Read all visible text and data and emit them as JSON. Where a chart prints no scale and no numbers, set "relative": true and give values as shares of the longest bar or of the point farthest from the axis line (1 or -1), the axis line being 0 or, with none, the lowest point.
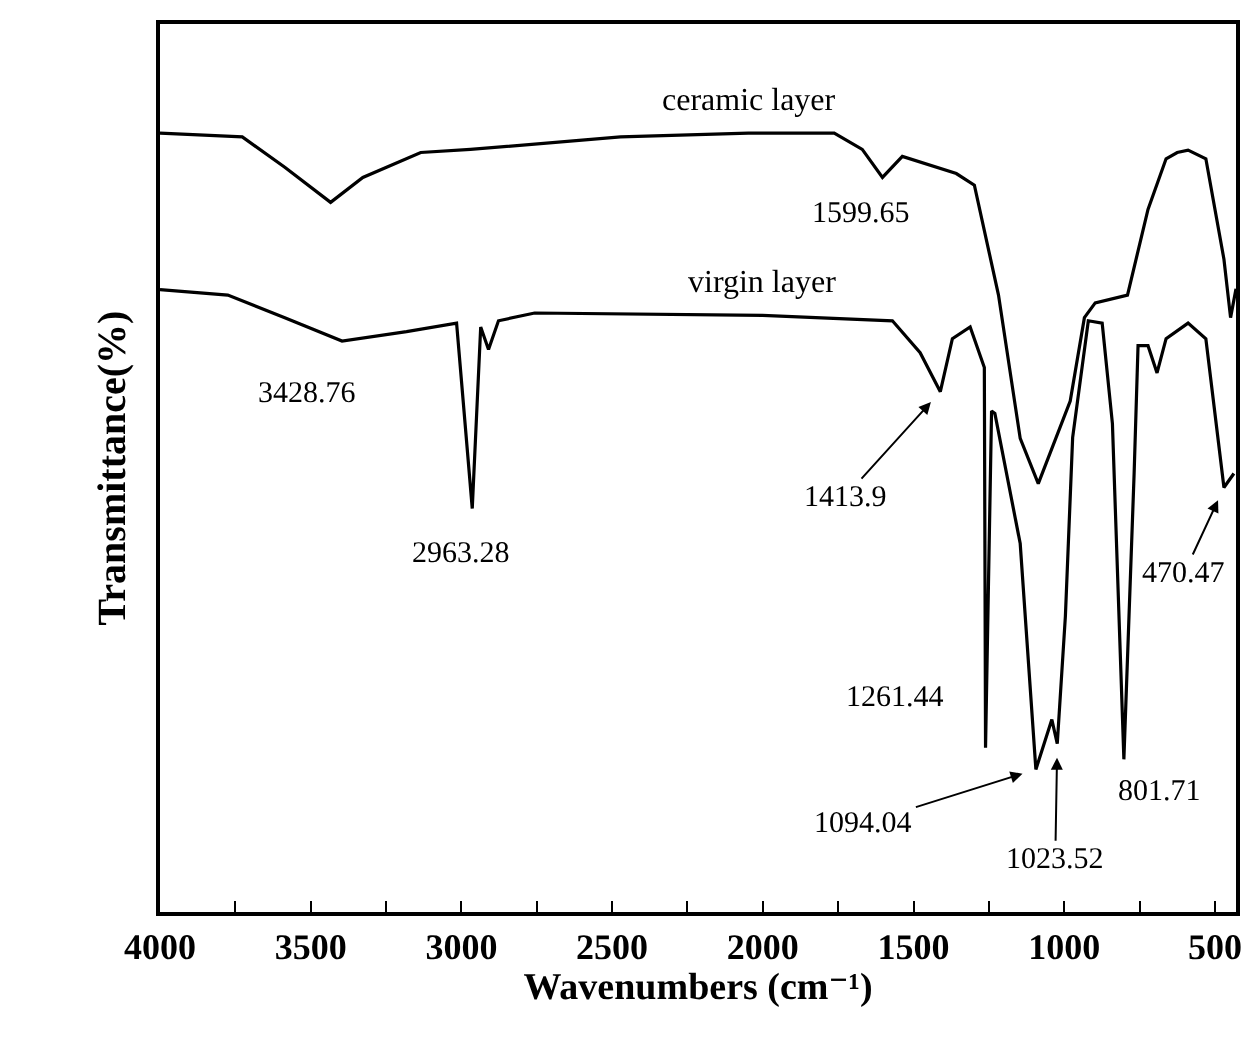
{
  "chart_data": {
    "type": "line",
    "relative": true,
    "xlabel": "Wavenumbers (cm⁻¹)",
    "ylabel": "Transmittance(%)",
    "xlim": [
      4000,
      430
    ],
    "xticks": [
      4000,
      {
        "value": 3750,
        "label": null
      },
      3500,
      {
        "value": 3250,
        "label": null
      },
      3000,
      {
        "value": 2750,
        "label": null
      },
      2500,
      {
        "value": 2250,
        "label": null
      },
      2000,
      {
        "value": 1750,
        "label": null
      },
      1500,
      {
        "value": 1250,
        "label": null
      },
      1000,
      {
        "value": 750,
        "label": null
      },
      500
    ],
    "tick_labels": "x",
    "grid": false,
    "legend": false,
    "marker": "none",
    "line_style": "solid",
    "series": [
      {
        "name": "ceramic layer",
        "color": "#000000",
        "x": [
          4000,
          3727,
          3586,
          3434,
          3327,
          3135,
          2970,
          2472,
          2048,
          1763,
          1670,
          1603,
          1537,
          1358,
          1298,
          1218,
          1146,
          1086,
          980,
          933,
          897,
          790,
          722,
          662,
          625,
          589,
          530,
          470,
          448,
          430
        ],
        "values": [
          1.0,
          0.995,
          0.956,
          0.911,
          0.943,
          0.975,
          0.979,
          0.995,
          1.0,
          1.0,
          0.979,
          0.943,
          0.97,
          0.948,
          0.933,
          0.792,
          0.608,
          0.55,
          0.656,
          0.763,
          0.782,
          0.792,
          0.902,
          0.967,
          0.975,
          0.978,
          0.967,
          0.838,
          0.763,
          0.8
        ]
      },
      {
        "name": "virgin layer",
        "color": "#000000",
        "x": [
          4000,
          3775,
          3586,
          3396,
          3182,
          3016,
          2964,
          2936,
          2910,
          2877,
          2757,
          2001,
          1570,
          1478,
          1411,
          1371,
          1312,
          1265,
          1261,
          1241,
          1230,
          1146,
          1094,
          1041,
          1023,
          996,
          972,
          920,
          874,
          840,
          802,
          768,
          755,
          722,
          692,
          662,
          589,
          530,
          470,
          437
        ],
        "values": [
          0.799,
          0.792,
          0.763,
          0.733,
          0.745,
          0.756,
          0.518,
          0.751,
          0.722,
          0.759,
          0.769,
          0.766,
          0.759,
          0.718,
          0.668,
          0.736,
          0.751,
          0.699,
          0.211,
          0.643,
          0.64,
          0.473,
          0.183,
          0.247,
          0.216,
          0.38,
          0.609,
          0.759,
          0.756,
          0.627,
          0.196,
          0.563,
          0.727,
          0.727,
          0.692,
          0.736,
          0.756,
          0.736,
          0.545,
          0.563
        ]
      }
    ],
    "annotations": [
      {
        "text": "3428.76",
        "x": 3396,
        "y": 0.733
      },
      {
        "text": "2963.28",
        "x": 2964,
        "y": 0.518
      },
      {
        "text": "1599.65",
        "x": 1603,
        "y": 0.943
      },
      {
        "text": "1413.9",
        "x": 1411,
        "y": 0.668
      },
      {
        "text": "1261.44",
        "x": 1261,
        "y": 0.211
      },
      {
        "text": "1094.04",
        "x": 1094,
        "y": 0.183
      },
      {
        "text": "1023.52",
        "x": 1023,
        "y": 0.216
      },
      {
        "text": "801.71",
        "x": 802,
        "y": 0.196
      },
      {
        "text": "470.47",
        "x": 470,
        "y": 0.545
      }
    ]
  }
}
